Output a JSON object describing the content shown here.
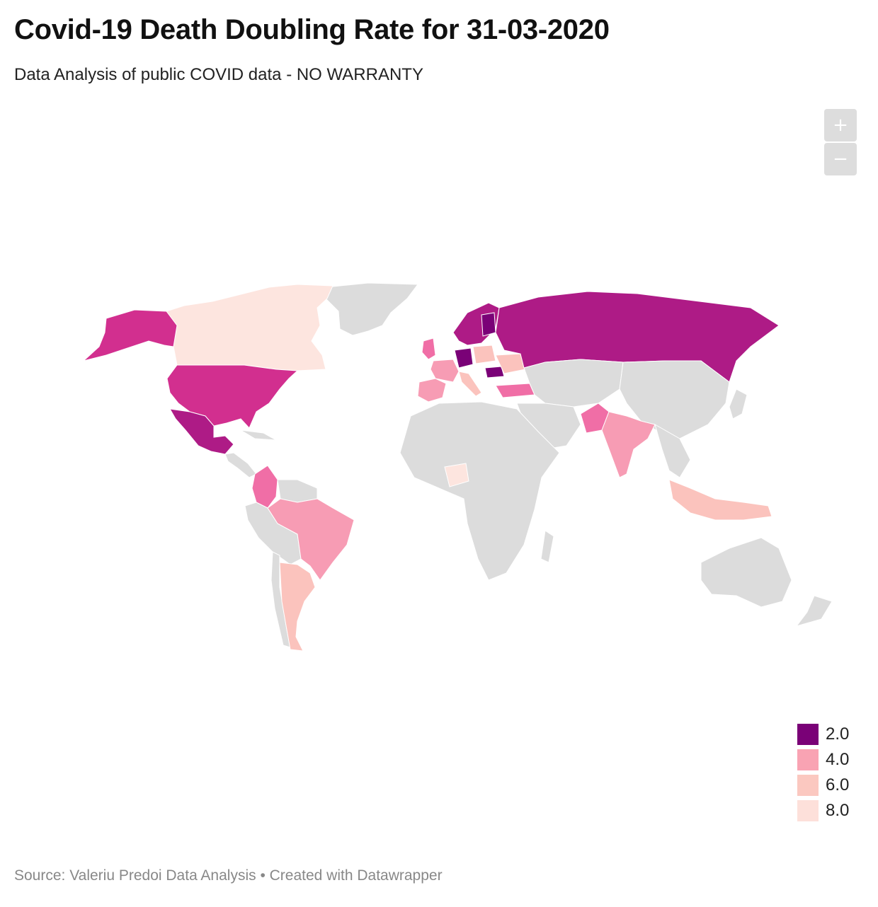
{
  "header": {
    "title": "Covid-19 Death Doubling Rate for 31-03-2020",
    "subtitle": "Data Analysis of public COVID data - NO WARRANTY"
  },
  "controls": {
    "zoom_in": "+",
    "zoom_out": "−"
  },
  "legend": {
    "items": [
      {
        "label": "2.0",
        "color": "#7a0177"
      },
      {
        "label": "4.0",
        "color": "#f9a3b3"
      },
      {
        "label": "6.0",
        "color": "#fbc8c0"
      },
      {
        "label": "8.0",
        "color": "#fde0da"
      }
    ]
  },
  "colors": {
    "no_data": "#dcdcdc",
    "dark_purple": "#7a0177",
    "purple": "#ae1b86",
    "magenta": "#d22f8f",
    "pink": "#f06ea6",
    "light_pink": "#f79cb4",
    "salmon": "#fbc3bd",
    "pale": "#fde5df"
  },
  "footer": {
    "text": "Source: Valeriu Predoi Data Analysis • Created with Datawrapper"
  }
}
